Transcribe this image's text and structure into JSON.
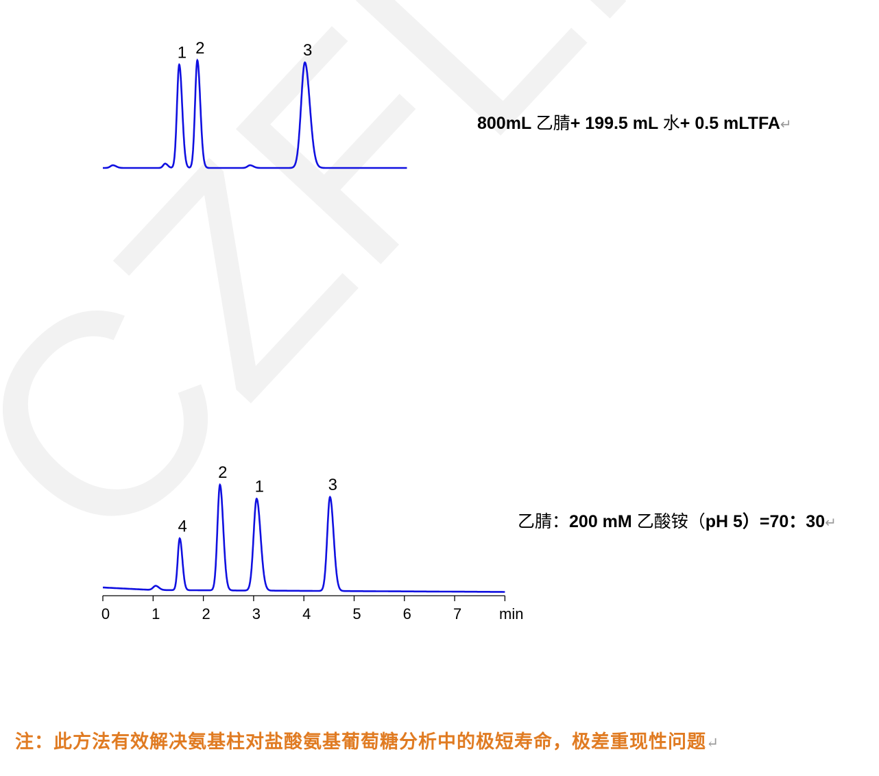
{
  "watermark": {
    "text": "CZFLM",
    "color": "#f2f2f2"
  },
  "conditions": {
    "top": {
      "parts": [
        "800mL ",
        "乙腈",
        "+ 199.5 mL ",
        "水",
        "+ 0.5 mLTFA"
      ]
    },
    "bottom": {
      "parts": [
        "乙腈：",
        "200 mM ",
        "乙酸铵（",
        "pH 5",
        "）=70：30"
      ]
    }
  },
  "note": "注：此方法有效解决氨基柱对盐酸氨基葡萄糖分析中的极短寿命，极差重现性问题",
  "colors": {
    "trace": "#1010e0",
    "note": "#e07b22",
    "axis": "#000000"
  },
  "chart_data": [
    {
      "type": "line",
      "title": "",
      "x_unit": "min",
      "xlim": [
        0,
        6.05
      ],
      "y_axis_shown": false,
      "x_axis_shown": false,
      "peaks": [
        {
          "label": "1",
          "rt": 1.52,
          "relative_height": 96,
          "sigma": 0.045
        },
        {
          "label": "2",
          "rt": 1.88,
          "relative_height": 100,
          "sigma": 0.045
        },
        {
          "label": "3",
          "rt": 4.02,
          "relative_height": 98,
          "sigma": 0.075
        }
      ],
      "minor_peaks": [
        {
          "rt": 0.2,
          "relative_height": 2.5,
          "sigma": 0.05
        },
        {
          "rt": 1.24,
          "relative_height": 4,
          "sigma": 0.04
        },
        {
          "rt": 2.93,
          "relative_height": 2.5,
          "sigma": 0.05
        }
      ]
    },
    {
      "type": "line",
      "title": "",
      "x_unit": "min",
      "xlim": [
        0,
        8
      ],
      "x_ticks": [
        "0",
        "1",
        "2",
        "3",
        "4",
        "5",
        "6",
        "7"
      ],
      "xlabel": "min",
      "y_axis_shown": false,
      "peaks": [
        {
          "label": "4",
          "rt": 1.53,
          "relative_height": 49,
          "sigma": 0.04
        },
        {
          "label": "2",
          "rt": 2.33,
          "relative_height": 100,
          "sigma": 0.05
        },
        {
          "label": "1",
          "rt": 3.06,
          "relative_height": 87,
          "sigma": 0.06
        },
        {
          "label": "3",
          "rt": 4.52,
          "relative_height": 89,
          "sigma": 0.055
        }
      ],
      "minor_peaks": [
        {
          "rt": 1.05,
          "relative_height": 4,
          "sigma": 0.05
        }
      ]
    }
  ]
}
